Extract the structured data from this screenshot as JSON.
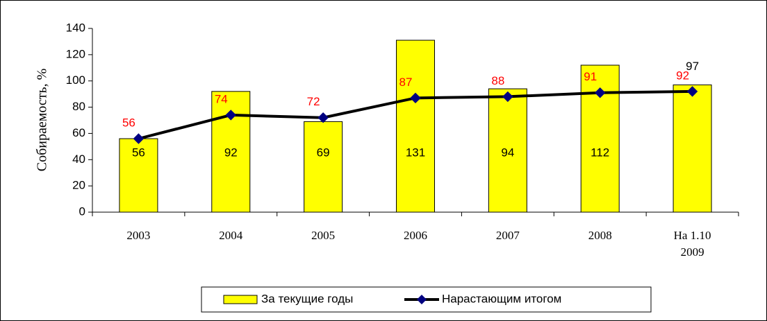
{
  "chart_data": {
    "type": "bar_line",
    "y_axis_label": "Собираемость, %",
    "categories": [
      "2003",
      "2004",
      "2005",
      "2006",
      "2007",
      "2008",
      "На 1.10 2009"
    ],
    "series": [
      {
        "name": "За текущие годы",
        "type": "bar",
        "color": "#ffff00",
        "values": [
          56,
          92,
          69,
          131,
          94,
          112,
          97
        ]
      },
      {
        "name": "Нарастающим итогом",
        "type": "line",
        "color": "#000000",
        "marker_color": "#000080",
        "label_color": "#ff0000",
        "values": [
          56,
          74,
          72,
          87,
          88,
          91,
          92
        ]
      }
    ],
    "ylim": [
      0,
      140
    ],
    "yticks": [
      0,
      20,
      40,
      60,
      80,
      100,
      120,
      140
    ],
    "legend": "bottom"
  }
}
